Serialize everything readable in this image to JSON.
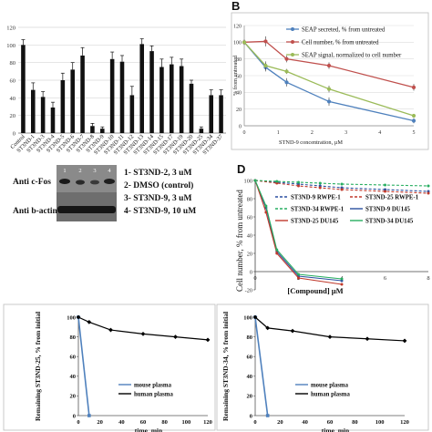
{
  "panels": {
    "B": {
      "label": "B"
    },
    "C": {
      "lane_numbers": [
        "1",
        "2",
        "3",
        "4"
      ],
      "row_labels": [
        "Anti c-Fos",
        "Anti b-actin"
      ],
      "legend": [
        "1- ST3ND-2, 3 uM",
        "2- DMSO (control)",
        "3- ST3ND-9, 3 uM",
        "4- ST3ND-9, 10 uM"
      ]
    },
    "D": {
      "label": "D"
    }
  },
  "chart_data": [
    {
      "id": "A",
      "type": "bar",
      "categories": [
        "Control",
        "ST3ND-1",
        "ST3ND-3",
        "ST3ND-4",
        "ST3ND-5",
        "ST3ND-6",
        "ST3ND-7",
        "ST3ND-8",
        "ST3ND-9",
        "ST3ND-10",
        "ST3ND-11",
        "ST3ND-12",
        "ST3ND-13",
        "ST3ND-14",
        "ST3ND-15",
        "ST3ND-17",
        "ST3ND-19",
        "ST3ND-20",
        "ST3ND-25",
        "ST3ND-34",
        "ST3ND-37"
      ],
      "values": [
        100,
        49,
        41,
        29,
        60,
        72,
        88,
        8,
        5,
        84,
        81,
        43,
        101,
        93,
        75,
        78,
        76,
        56,
        5,
        43,
        43
      ],
      "errors": [
        6,
        8,
        6,
        6,
        8,
        8,
        9,
        3,
        2,
        8,
        7,
        10,
        6,
        6,
        9,
        8,
        8,
        4,
        2,
        6,
        6
      ],
      "ylim": [
        0,
        120
      ],
      "yticks": [
        "0",
        "20",
        "40",
        "60",
        "80",
        "100",
        "120"
      ],
      "grid": true
    },
    {
      "id": "B",
      "type": "line",
      "x": [
        0,
        0.63,
        1.25,
        2.5,
        5
      ],
      "xticks": [
        "0",
        "1",
        "2",
        "3",
        "4",
        "5"
      ],
      "xlabel": "STND-9  concentration, µM",
      "ylabel": "% from untreated",
      "yticks": [
        "0",
        "20",
        "40",
        "60",
        "80",
        "100",
        "120"
      ],
      "ylim": [
        0,
        120
      ],
      "xlim": [
        0,
        5
      ],
      "legend_position": "top-right",
      "series": [
        {
          "name": "SEAP secreted, % from untreated",
          "color": "#4f81bd",
          "values": [
            100,
            70,
            52,
            29,
            6
          ],
          "errors": [
            3,
            5,
            5,
            5,
            3
          ]
        },
        {
          "name": "Cell number, % from untreated",
          "color": "#c0504d",
          "values": [
            100,
            101,
            80,
            72,
            46
          ],
          "errors": [
            3,
            6,
            4,
            4,
            4
          ]
        },
        {
          "name": "SEAP signal, normalized to cell number",
          "color": "#9bbb59",
          "values": [
            100,
            72,
            65,
            44,
            12
          ],
          "errors": [
            0,
            5,
            3,
            4,
            2
          ]
        }
      ]
    },
    {
      "id": "D",
      "type": "line",
      "x": [
        0,
        0.5,
        1,
        2,
        3,
        4
      ],
      "xticks": [
        "0",
        "2",
        "4",
        "6",
        "8"
      ],
      "xlabel": "[Compound] μM",
      "ylabel": "Cell number, % from untreated",
      "yticks": [
        "-20",
        "0",
        "20",
        "40",
        "60",
        "80",
        "100"
      ],
      "ylim": [
        -20,
        100
      ],
      "xlim": [
        0,
        8
      ],
      "series": [
        {
          "name": "ST3ND-9 RWPE-1",
          "color": "#2a4fa0",
          "dash": true,
          "x": [
            0,
            1,
            2,
            3,
            4,
            6,
            8
          ],
          "values": [
            100,
            98,
            96,
            94,
            92,
            90,
            88
          ]
        },
        {
          "name": "ST3ND-25 RWPE-1",
          "color": "#c0392b",
          "dash": true,
          "x": [
            0,
            1,
            2,
            3,
            4,
            6,
            8
          ],
          "values": [
            100,
            97,
            94,
            92,
            90,
            88,
            86
          ]
        },
        {
          "name": "ST3ND-34 RWPE-1",
          "color": "#27ae60",
          "dash": true,
          "x": [
            0,
            1,
            2,
            3,
            4,
            6,
            8
          ],
          "values": [
            100,
            99,
            98,
            97,
            96,
            95,
            94
          ]
        },
        {
          "name": "ST3ND-9 DU145",
          "color": "#2a4fa0",
          "dash": false,
          "x": [
            0,
            0.5,
            1,
            2,
            4
          ],
          "values": [
            100,
            70,
            22,
            -5,
            -10
          ]
        },
        {
          "name": "ST3ND-25 DU145",
          "color": "#c0392b",
          "dash": false,
          "x": [
            0,
            0.5,
            1,
            2,
            4
          ],
          "values": [
            100,
            65,
            20,
            -7,
            -14
          ]
        },
        {
          "name": "ST3ND-34 DU145",
          "color": "#27ae60",
          "dash": false,
          "x": [
            0,
            0.5,
            1,
            2,
            4
          ],
          "values": [
            100,
            72,
            24,
            -3,
            -8
          ]
        }
      ]
    },
    {
      "id": "E",
      "type": "line",
      "x": [
        0,
        10,
        30,
        60,
        90,
        120
      ],
      "xticks": [
        "0",
        "20",
        "40",
        "60",
        "80",
        "100",
        "120"
      ],
      "xlabel": "time, min",
      "ylabel": "Remaining ST3ND-25, % from initial",
      "yticks": [
        "0",
        "20",
        "40",
        "60",
        "80",
        "100"
      ],
      "ylim": [
        0,
        100
      ],
      "xlim": [
        0,
        120
      ],
      "series": [
        {
          "name": "mouse plasma",
          "color": "#4f81bd",
          "x": [
            0,
            10
          ],
          "values": [
            100,
            0
          ]
        },
        {
          "name": "human plasma",
          "color": "#000000",
          "x": [
            0,
            10,
            30,
            60,
            90,
            120
          ],
          "values": [
            100,
            95,
            87,
            83,
            80,
            77
          ]
        }
      ]
    },
    {
      "id": "F",
      "type": "line",
      "x": [
        0,
        10,
        30,
        60,
        90,
        120
      ],
      "xticks": [
        "0",
        "20",
        "40",
        "60",
        "80",
        "100",
        "120"
      ],
      "xlabel": "time, min",
      "ylabel": "Remaining ST3ND-34, % from initial",
      "yticks": [
        "0",
        "20",
        "40",
        "60",
        "80",
        "100"
      ],
      "ylim": [
        0,
        100
      ],
      "xlim": [
        0,
        120
      ],
      "series": [
        {
          "name": "mouse plasma",
          "color": "#4f81bd",
          "x": [
            0,
            10
          ],
          "values": [
            100,
            0
          ]
        },
        {
          "name": "human plasma",
          "color": "#000000",
          "x": [
            0,
            10,
            30,
            60,
            90,
            120
          ],
          "values": [
            100,
            89,
            86,
            80,
            78,
            76
          ]
        }
      ]
    }
  ]
}
